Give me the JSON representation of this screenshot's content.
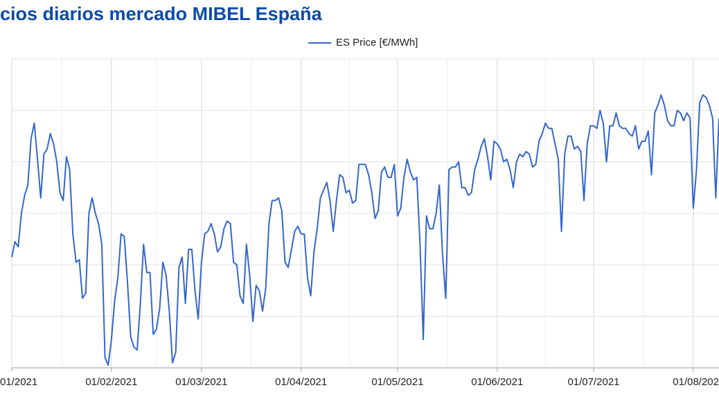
{
  "chart_data": {
    "type": "line",
    "title": "cios diarios mercado MIBEL España",
    "x": [
      "2021-01-01",
      "2021-01-02",
      "2021-01-03",
      "2021-01-04",
      "2021-01-05",
      "2021-01-06",
      "2021-01-07",
      "2021-01-08",
      "2021-01-09",
      "2021-01-10",
      "2021-01-11",
      "2021-01-12",
      "2021-01-13",
      "2021-01-14",
      "2021-01-15",
      "2021-01-16",
      "2021-01-17",
      "2021-01-18",
      "2021-01-19",
      "2021-01-20",
      "2021-01-21",
      "2021-01-22",
      "2021-01-23",
      "2021-01-24",
      "2021-01-25",
      "2021-01-26",
      "2021-01-27",
      "2021-01-28",
      "2021-01-29",
      "2021-01-30",
      "2021-01-31",
      "2021-02-01",
      "2021-02-02",
      "2021-02-03",
      "2021-02-04",
      "2021-02-05",
      "2021-02-06",
      "2021-02-07",
      "2021-02-08",
      "2021-02-09",
      "2021-02-10",
      "2021-02-11",
      "2021-02-12",
      "2021-02-13",
      "2021-02-14",
      "2021-02-15",
      "2021-02-16",
      "2021-02-17",
      "2021-02-18",
      "2021-02-19",
      "2021-02-20",
      "2021-02-21",
      "2021-02-22",
      "2021-02-23",
      "2021-02-24",
      "2021-02-25",
      "2021-02-26",
      "2021-02-27",
      "2021-02-28",
      "2021-03-01",
      "2021-03-02",
      "2021-03-03",
      "2021-03-04",
      "2021-03-05",
      "2021-03-06",
      "2021-03-07",
      "2021-03-08",
      "2021-03-09",
      "2021-03-10",
      "2021-03-11",
      "2021-03-12",
      "2021-03-13",
      "2021-03-14",
      "2021-03-15",
      "2021-03-16",
      "2021-03-17",
      "2021-03-18",
      "2021-03-19",
      "2021-03-20",
      "2021-03-21",
      "2021-03-22",
      "2021-03-23",
      "2021-03-24",
      "2021-03-25",
      "2021-03-26",
      "2021-03-27",
      "2021-03-28",
      "2021-03-29",
      "2021-03-30",
      "2021-03-31",
      "2021-04-01",
      "2021-04-02",
      "2021-04-03",
      "2021-04-04",
      "2021-04-05",
      "2021-04-06",
      "2021-04-07",
      "2021-04-08",
      "2021-04-09",
      "2021-04-10",
      "2021-04-11",
      "2021-04-12",
      "2021-04-13",
      "2021-04-14",
      "2021-04-15",
      "2021-04-16",
      "2021-04-17",
      "2021-04-18",
      "2021-04-19",
      "2021-04-20",
      "2021-04-21",
      "2021-04-22",
      "2021-04-23",
      "2021-04-24",
      "2021-04-25",
      "2021-04-26",
      "2021-04-27",
      "2021-04-28",
      "2021-04-29",
      "2021-04-30",
      "2021-05-01",
      "2021-05-02",
      "2021-05-03",
      "2021-05-04",
      "2021-05-05",
      "2021-05-06",
      "2021-05-07",
      "2021-05-08",
      "2021-05-09",
      "2021-05-10",
      "2021-05-11",
      "2021-05-12",
      "2021-05-13",
      "2021-05-14",
      "2021-05-15",
      "2021-05-16",
      "2021-05-17",
      "2021-05-18",
      "2021-05-19",
      "2021-05-20",
      "2021-05-21",
      "2021-05-22",
      "2021-05-23",
      "2021-05-24",
      "2021-05-25",
      "2021-05-26",
      "2021-05-27",
      "2021-05-28",
      "2021-05-29",
      "2021-05-30",
      "2021-05-31",
      "2021-06-01",
      "2021-06-02",
      "2021-06-03",
      "2021-06-04",
      "2021-06-05",
      "2021-06-06",
      "2021-06-07",
      "2021-06-08",
      "2021-06-09",
      "2021-06-10",
      "2021-06-11",
      "2021-06-12",
      "2021-06-13",
      "2021-06-14",
      "2021-06-15",
      "2021-06-16",
      "2021-06-17",
      "2021-06-18",
      "2021-06-19",
      "2021-06-20",
      "2021-06-21",
      "2021-06-22",
      "2021-06-23",
      "2021-06-24",
      "2021-06-25",
      "2021-06-26",
      "2021-06-27",
      "2021-06-28",
      "2021-06-29",
      "2021-06-30",
      "2021-07-01",
      "2021-07-02",
      "2021-07-03",
      "2021-07-04",
      "2021-07-05",
      "2021-07-06",
      "2021-07-07",
      "2021-07-08",
      "2021-07-09",
      "2021-07-10",
      "2021-07-11",
      "2021-07-12",
      "2021-07-13",
      "2021-07-14",
      "2021-07-15",
      "2021-07-16",
      "2021-07-17",
      "2021-07-18",
      "2021-07-19",
      "2021-07-20",
      "2021-07-21",
      "2021-07-22",
      "2021-07-23",
      "2021-07-24",
      "2021-07-25",
      "2021-07-26",
      "2021-07-27",
      "2021-07-28",
      "2021-07-29",
      "2021-07-30",
      "2021-07-31",
      "2021-08-01",
      "2021-08-02",
      "2021-08-03",
      "2021-08-04",
      "2021-08-05",
      "2021-08-06",
      "2021-08-07",
      "2021-08-08",
      "2021-08-09"
    ],
    "series": [
      {
        "name": "ES Price [€/MWh]",
        "color": "#3366cc",
        "values": [
          43,
          49,
          47,
          60,
          67,
          71,
          89,
          95,
          81,
          66,
          83,
          85,
          91,
          87,
          80,
          68,
          65,
          82,
          77,
          52,
          41,
          42,
          27,
          29,
          60,
          66,
          60,
          56,
          48,
          4,
          1,
          11,
          26,
          35,
          52,
          51,
          33,
          12,
          8,
          7,
          25,
          48,
          37,
          37,
          13,
          15,
          23,
          41,
          36,
          22,
          2,
          6,
          39,
          43,
          25,
          46,
          46,
          30,
          19,
          41,
          52,
          53,
          56,
          52,
          45,
          47,
          54,
          57,
          56,
          41,
          40,
          28,
          25,
          48,
          36,
          18,
          32,
          30,
          22,
          31,
          56,
          65,
          65,
          66,
          61,
          41,
          39,
          46,
          53,
          55,
          52,
          52,
          35,
          28,
          45,
          54,
          66,
          69,
          72,
          65,
          53,
          65,
          75,
          74,
          68,
          69,
          64,
          65,
          79,
          79,
          79,
          75,
          68,
          58,
          61,
          76,
          78,
          74,
          74,
          79,
          59,
          62,
          74,
          81,
          76,
          73,
          74,
          48,
          11,
          59,
          54,
          54,
          60,
          71,
          44,
          27,
          77,
          78,
          78,
          80,
          70,
          70,
          67,
          68,
          77,
          81,
          86,
          89,
          82,
          73,
          88,
          87,
          85,
          80,
          81,
          77,
          70,
          80,
          83,
          82,
          84,
          83,
          78,
          79,
          88,
          91,
          95,
          93,
          93,
          87,
          81,
          53,
          83,
          90,
          90,
          85,
          86,
          84,
          65,
          87,
          94,
          94,
          93,
          100,
          95,
          80,
          94,
          94,
          99,
          94,
          93,
          93,
          91,
          90,
          94,
          85,
          88,
          88,
          92,
          75,
          99,
          102,
          106,
          102,
          96,
          94,
          94,
          100,
          99,
          96,
          99,
          97,
          62,
          77,
          103,
          106,
          105,
          102,
          97,
          66,
          97
        ]
      }
    ],
    "xlim": [
      "2021-01-01",
      "2021-08-09"
    ],
    "xticks": [
      {
        "value": "2021-01-01",
        "label": "01/2021"
      },
      {
        "value": "2021-02-01",
        "label": "01/02/2021"
      },
      {
        "value": "2021-03-01",
        "label": "01/03/2021"
      },
      {
        "value": "2021-04-01",
        "label": "01/04/2021"
      },
      {
        "value": "2021-05-01",
        "label": "01/05/2021"
      },
      {
        "value": "2021-06-01",
        "label": "01/06/2021"
      },
      {
        "value": "2021-07-01",
        "label": "01/07/2021"
      },
      {
        "value": "2021-08-01",
        "label": "01/08/202"
      }
    ],
    "ylim": [
      0,
      120
    ],
    "grid": true,
    "legend": "top"
  }
}
